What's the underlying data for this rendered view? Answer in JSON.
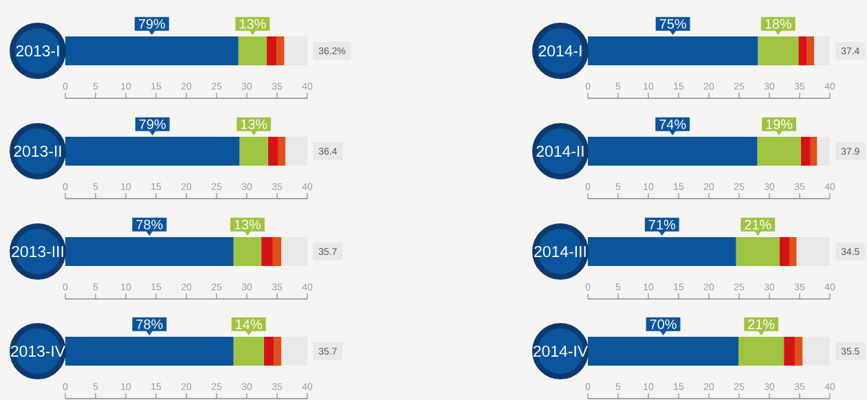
{
  "chart_data": [
    {
      "type": "bar",
      "orientation": "horizontal",
      "stacked": true,
      "categories": [
        "2013-I"
      ],
      "xlim": [
        0,
        40
      ],
      "xticks": [
        0,
        5,
        10,
        15,
        20,
        25,
        30,
        35,
        40
      ],
      "annotations": [
        "79%",
        "13%",
        "36.2%"
      ],
      "series": [
        {
          "color": "#0b559c",
          "values": [
            28.6
          ]
        },
        {
          "color": "#9fc43f",
          "values": [
            4.7
          ]
        },
        {
          "color": "#d51317",
          "values": [
            1.6
          ]
        },
        {
          "color": "#e04f16",
          "values": [
            1.3
          ]
        }
      ]
    },
    {
      "type": "bar",
      "orientation": "horizontal",
      "stacked": true,
      "categories": [
        "2013-II"
      ],
      "xlim": [
        0,
        40
      ],
      "xticks": [
        0,
        5,
        10,
        15,
        20,
        25,
        30,
        35,
        40
      ],
      "annotations": [
        "79%",
        "13%",
        "36.4"
      ],
      "series": [
        {
          "color": "#0b559c",
          "values": [
            28.8
          ]
        },
        {
          "color": "#9fc43f",
          "values": [
            4.7
          ]
        },
        {
          "color": "#d51317",
          "values": [
            1.7
          ]
        },
        {
          "color": "#e04f16",
          "values": [
            1.2
          ]
        }
      ]
    },
    {
      "type": "bar",
      "orientation": "horizontal",
      "stacked": true,
      "categories": [
        "2013-III"
      ],
      "xlim": [
        0,
        40
      ],
      "xticks": [
        0,
        5,
        10,
        15,
        20,
        25,
        30,
        35,
        40
      ],
      "annotations": [
        "78%",
        "13%",
        "35.7"
      ],
      "series": [
        {
          "color": "#0b559c",
          "values": [
            27.8
          ]
        },
        {
          "color": "#9fc43f",
          "values": [
            4.6
          ]
        },
        {
          "color": "#d51317",
          "values": [
            1.9
          ]
        },
        {
          "color": "#e04f16",
          "values": [
            1.4
          ]
        }
      ]
    },
    {
      "type": "bar",
      "orientation": "horizontal",
      "stacked": true,
      "categories": [
        "2013-IV"
      ],
      "xlim": [
        0,
        40
      ],
      "xticks": [
        0,
        5,
        10,
        15,
        20,
        25,
        30,
        35,
        40
      ],
      "annotations": [
        "78%",
        "14%",
        "35.7"
      ],
      "series": [
        {
          "color": "#0b559c",
          "values": [
            27.8
          ]
        },
        {
          "color": "#9fc43f",
          "values": [
            5.0
          ]
        },
        {
          "color": "#d51317",
          "values": [
            1.7
          ]
        },
        {
          "color": "#e04f16",
          "values": [
            1.2
          ]
        }
      ]
    },
    {
      "type": "bar",
      "orientation": "horizontal",
      "stacked": true,
      "categories": [
        "2014-I"
      ],
      "xlim": [
        0,
        40
      ],
      "xticks": [
        0,
        5,
        10,
        15,
        20,
        25,
        30,
        35,
        40
      ],
      "annotations": [
        "75%",
        "18%",
        "37.4"
      ],
      "series": [
        {
          "color": "#0b559c",
          "values": [
            28.1
          ]
        },
        {
          "color": "#9fc43f",
          "values": [
            6.7
          ]
        },
        {
          "color": "#d51317",
          "values": [
            1.4
          ]
        },
        {
          "color": "#e04f16",
          "values": [
            1.2
          ]
        }
      ]
    },
    {
      "type": "bar",
      "orientation": "horizontal",
      "stacked": true,
      "categories": [
        "2014-II"
      ],
      "xlim": [
        0,
        40
      ],
      "xticks": [
        0,
        5,
        10,
        15,
        20,
        25,
        30,
        35,
        40
      ],
      "annotations": [
        "74%",
        "19%",
        "37.9"
      ],
      "series": [
        {
          "color": "#0b559c",
          "values": [
            28.0
          ]
        },
        {
          "color": "#9fc43f",
          "values": [
            7.2
          ]
        },
        {
          "color": "#d51317",
          "values": [
            1.6
          ]
        },
        {
          "color": "#e04f16",
          "values": [
            1.1
          ]
        }
      ]
    },
    {
      "type": "bar",
      "orientation": "horizontal",
      "stacked": true,
      "categories": [
        "2014-III"
      ],
      "xlim": [
        0,
        40
      ],
      "xticks": [
        0,
        5,
        10,
        15,
        20,
        25,
        30,
        35,
        40
      ],
      "annotations": [
        "71%",
        "21%",
        "34.5"
      ],
      "series": [
        {
          "color": "#0b559c",
          "values": [
            24.5
          ]
        },
        {
          "color": "#9fc43f",
          "values": [
            7.2
          ]
        },
        {
          "color": "#d51317",
          "values": [
            1.6
          ]
        },
        {
          "color": "#e04f16",
          "values": [
            1.2
          ]
        }
      ]
    },
    {
      "type": "bar",
      "orientation": "horizontal",
      "stacked": true,
      "categories": [
        "2014-IV"
      ],
      "xlim": [
        0,
        40
      ],
      "xticks": [
        0,
        5,
        10,
        15,
        20,
        25,
        30,
        35,
        40
      ],
      "annotations": [
        "70%",
        "21%",
        "35.5"
      ],
      "series": [
        {
          "color": "#0b559c",
          "values": [
            24.9
          ]
        },
        {
          "color": "#9fc43f",
          "values": [
            7.5
          ]
        },
        {
          "color": "#d51317",
          "values": [
            1.8
          ]
        },
        {
          "color": "#e04f16",
          "values": [
            1.3
          ]
        }
      ]
    }
  ]
}
